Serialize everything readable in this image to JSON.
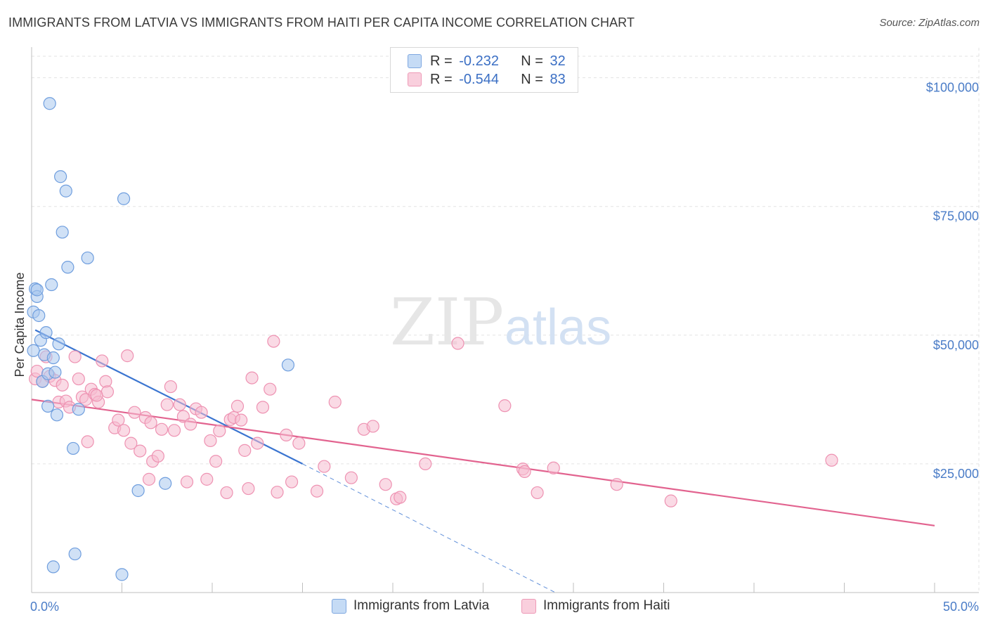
{
  "title": "IMMIGRANTS FROM LATVIA VS IMMIGRANTS FROM HAITI PER CAPITA INCOME CORRELATION CHART",
  "source": "Source: ZipAtlas.com",
  "watermark": {
    "zip": "ZIP",
    "atlas": "atlas"
  },
  "colors": {
    "latvia_fill": "#a9c8ef",
    "latvia_stroke": "#6f9ede",
    "latvia_line": "#3a74d0",
    "haiti_fill": "#f6bcd0",
    "haiti_stroke": "#ee92b2",
    "haiti_line": "#e2638f",
    "tick_text": "#4a7cc7"
  },
  "legend": {
    "latvia": {
      "r_label": "R = ",
      "r_value": "-0.232",
      "n_label": "N = ",
      "n_value": "32"
    },
    "haiti": {
      "r_label": "R = ",
      "r_value": "-0.544",
      "n_label": "N = ",
      "n_value": "83"
    }
  },
  "bottom_legend": {
    "latvia": "Immigrants from Latvia",
    "haiti": "Immigrants from Haiti"
  },
  "chart_data": {
    "type": "scatter",
    "xlabel": "",
    "ylabel": "Per Capita Income",
    "xlim": [
      0,
      50
    ],
    "ylim": [
      0,
      105000
    ],
    "x_tick_labels": [
      "0.0%",
      "50.0%"
    ],
    "y_ticks": [
      25000,
      50000,
      75000,
      100000
    ],
    "y_tick_labels": [
      "$25,000",
      "$50,000",
      "$75,000",
      "$100,000"
    ],
    "grid": true,
    "series": [
      {
        "name": "Immigrants from Latvia",
        "points": [
          [
            0.1,
            47000
          ],
          [
            0.1,
            54500
          ],
          [
            0.2,
            59000
          ],
          [
            0.3,
            57500
          ],
          [
            0.4,
            53800
          ],
          [
            0.5,
            49000
          ],
          [
            0.6,
            41000
          ],
          [
            0.7,
            46200
          ],
          [
            0.8,
            50500
          ],
          [
            0.9,
            42500
          ],
          [
            0.9,
            36200
          ],
          [
            1.0,
            95000
          ],
          [
            1.1,
            59800
          ],
          [
            1.2,
            45600
          ],
          [
            1.3,
            42800
          ],
          [
            1.4,
            34500
          ],
          [
            1.5,
            48300
          ],
          [
            1.6,
            80800
          ],
          [
            1.7,
            70000
          ],
          [
            1.9,
            78000
          ],
          [
            2.0,
            63200
          ],
          [
            2.3,
            28000
          ],
          [
            2.4,
            7500
          ],
          [
            2.6,
            35600
          ],
          [
            3.1,
            65000
          ],
          [
            1.2,
            5000
          ],
          [
            5.1,
            76500
          ],
          [
            5.0,
            3500
          ],
          [
            5.9,
            19800
          ],
          [
            7.4,
            21200
          ],
          [
            14.2,
            44200
          ],
          [
            0.3,
            58800
          ]
        ],
        "trend": {
          "x0": 0.2,
          "y0": 51000,
          "x1": 15.0,
          "y1": 25000,
          "dashed_x1": 29.0,
          "dashed_y1": 0
        }
      },
      {
        "name": "Immigrants from Haiti",
        "points": [
          [
            0.2,
            41500
          ],
          [
            0.3,
            43000
          ],
          [
            0.6,
            41000
          ],
          [
            0.8,
            45800
          ],
          [
            1.0,
            42000
          ],
          [
            1.3,
            41200
          ],
          [
            1.5,
            37000
          ],
          [
            1.7,
            40300
          ],
          [
            1.9,
            37200
          ],
          [
            2.1,
            36000
          ],
          [
            2.4,
            45800
          ],
          [
            2.6,
            41500
          ],
          [
            2.8,
            38000
          ],
          [
            3.0,
            37500
          ],
          [
            3.1,
            29300
          ],
          [
            3.3,
            39500
          ],
          [
            3.5,
            38500
          ],
          [
            3.7,
            37000
          ],
          [
            3.9,
            45000
          ],
          [
            4.1,
            41000
          ],
          [
            4.2,
            39000
          ],
          [
            4.6,
            32000
          ],
          [
            4.8,
            33500
          ],
          [
            5.1,
            31500
          ],
          [
            5.3,
            46000
          ],
          [
            5.5,
            29000
          ],
          [
            5.7,
            35000
          ],
          [
            6.0,
            27500
          ],
          [
            6.3,
            34000
          ],
          [
            6.5,
            22000
          ],
          [
            6.7,
            25500
          ],
          [
            7.0,
            26500
          ],
          [
            7.2,
            31700
          ],
          [
            7.5,
            36500
          ],
          [
            7.7,
            40000
          ],
          [
            7.9,
            31500
          ],
          [
            8.2,
            36500
          ],
          [
            8.4,
            34200
          ],
          [
            8.6,
            21500
          ],
          [
            8.8,
            32700
          ],
          [
            9.1,
            35700
          ],
          [
            9.4,
            35000
          ],
          [
            9.7,
            22000
          ],
          [
            9.9,
            29500
          ],
          [
            10.2,
            25500
          ],
          [
            10.4,
            31400
          ],
          [
            10.8,
            19400
          ],
          [
            11.0,
            33600
          ],
          [
            11.2,
            34000
          ],
          [
            11.4,
            36200
          ],
          [
            11.6,
            33500
          ],
          [
            11.8,
            27600
          ],
          [
            12.0,
            20200
          ],
          [
            12.2,
            41700
          ],
          [
            12.5,
            29000
          ],
          [
            12.8,
            36000
          ],
          [
            13.2,
            39500
          ],
          [
            13.4,
            48800
          ],
          [
            13.6,
            19500
          ],
          [
            14.1,
            30600
          ],
          [
            14.4,
            21500
          ],
          [
            14.8,
            29000
          ],
          [
            15.8,
            19700
          ],
          [
            16.2,
            24500
          ],
          [
            16.8,
            37000
          ],
          [
            17.7,
            22300
          ],
          [
            18.4,
            31700
          ],
          [
            18.9,
            32300
          ],
          [
            19.6,
            21000
          ],
          [
            20.2,
            18200
          ],
          [
            20.4,
            18500
          ],
          [
            21.8,
            25000
          ],
          [
            23.6,
            48400
          ],
          [
            26.2,
            36300
          ],
          [
            27.2,
            24000
          ],
          [
            27.3,
            23500
          ],
          [
            28.0,
            19400
          ],
          [
            28.9,
            24200
          ],
          [
            32.4,
            21000
          ],
          [
            35.4,
            17800
          ],
          [
            44.3,
            25700
          ],
          [
            3.6,
            38300
          ],
          [
            6.6,
            33000
          ]
        ],
        "trend": {
          "x0": 0.0,
          "y0": 37500,
          "x1": 50.0,
          "y1": 13000
        }
      }
    ]
  }
}
